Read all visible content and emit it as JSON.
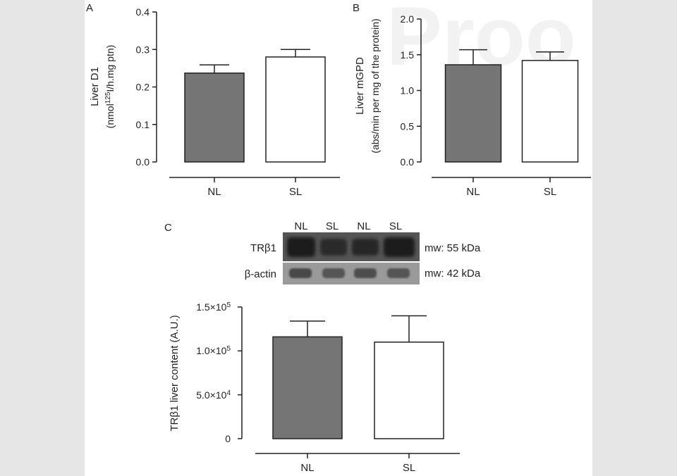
{
  "watermark": "Proo",
  "chart_data": [
    {
      "type": "bar",
      "panel_label": "A",
      "categories": [
        "NL",
        "SL"
      ],
      "values": [
        0.237,
        0.28
      ],
      "errors": [
        0.022,
        0.02
      ],
      "ylabel_line1": "Liver D1",
      "ylabel_line2": "(nmol125I/h.mg ptn)",
      "ylim": [
        0,
        0.4
      ],
      "yticks": [
        0,
        0.1,
        0.2,
        0.3,
        0.4
      ],
      "ytick_labels": [
        "0.0",
        "0.1",
        "0.2",
        "0.3",
        "0.4"
      ],
      "bar_colors": [
        "#757575",
        "#ffffff"
      ]
    },
    {
      "type": "bar",
      "panel_label": "B",
      "categories": [
        "NL",
        "SL"
      ],
      "values": [
        1.36,
        1.42
      ],
      "errors": [
        0.21,
        0.12
      ],
      "ylabel_line1": "Liver mGPD",
      "ylabel_line2": "(abs/min per mg of the protein)",
      "ylim": [
        0,
        2.0
      ],
      "yticks": [
        0,
        0.5,
        1.0,
        1.5,
        2.0
      ],
      "ytick_labels": [
        "0.0",
        "0.5",
        "1.0",
        "1.5",
        "2.0"
      ],
      "bar_colors": [
        "#757575",
        "#ffffff"
      ]
    },
    {
      "type": "bar",
      "panel_label": "C",
      "categories": [
        "NL",
        "SL"
      ],
      "values": [
        116000,
        110000
      ],
      "errors": [
        18000,
        30000
      ],
      "ylabel": "TRβ1 liver content (A.U.)",
      "ylim": [
        0,
        150000
      ],
      "yticks": [
        0,
        50000,
        100000,
        150000
      ],
      "ytick_labels": [
        "0",
        "5.0×104",
        "1.0×105",
        "1.5×105"
      ],
      "bar_colors": [
        "#757575",
        "#ffffff"
      ],
      "blot": {
        "lanes": [
          "NL",
          "SL",
          "NL",
          "SL"
        ],
        "rows": [
          {
            "label": "TRβ1",
            "mw": "mw: 55 kDa"
          },
          {
            "label": "β-actin",
            "mw": "mw: 42 kDa"
          }
        ]
      }
    }
  ]
}
